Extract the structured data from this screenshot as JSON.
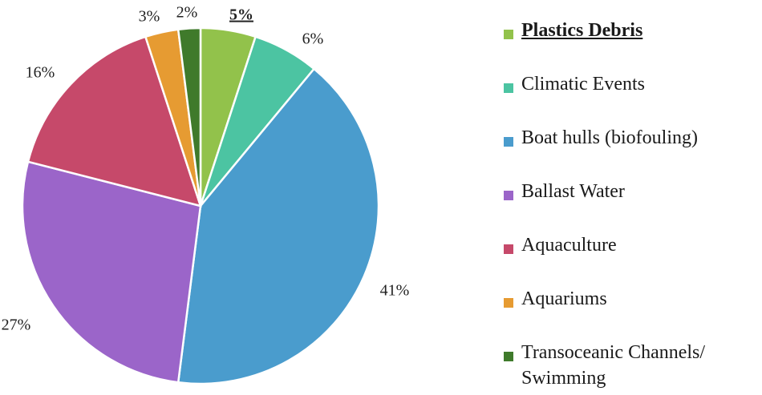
{
  "chart_data": {
    "type": "pie",
    "slices": [
      {
        "label": "Plastics Debris",
        "value": 5,
        "display": "5%",
        "color": "#92c24b",
        "highlight": true
      },
      {
        "label": "Climatic Events",
        "value": 6,
        "display": "6%",
        "color": "#4cc4a2",
        "highlight": false
      },
      {
        "label": "Boat hulls (biofouling)",
        "value": 41,
        "display": "41%",
        "color": "#4a9ccd",
        "highlight": false
      },
      {
        "label": "Ballast Water",
        "value": 27,
        "display": "27%",
        "color": "#9b65c9",
        "highlight": false
      },
      {
        "label": "Aquaculture",
        "value": 16,
        "display": "16%",
        "color": "#c6496a",
        "highlight": false
      },
      {
        "label": "Aquariums",
        "value": 3,
        "display": "3%",
        "color": "#e69b32",
        "highlight": false
      },
      {
        "label": "Transoceanic Channels/ Swimming",
        "value": 2,
        "display": "2%",
        "color": "#3f7a2b",
        "highlight": false
      }
    ],
    "legend_position": "right",
    "start_angle": "top, clockwise"
  }
}
